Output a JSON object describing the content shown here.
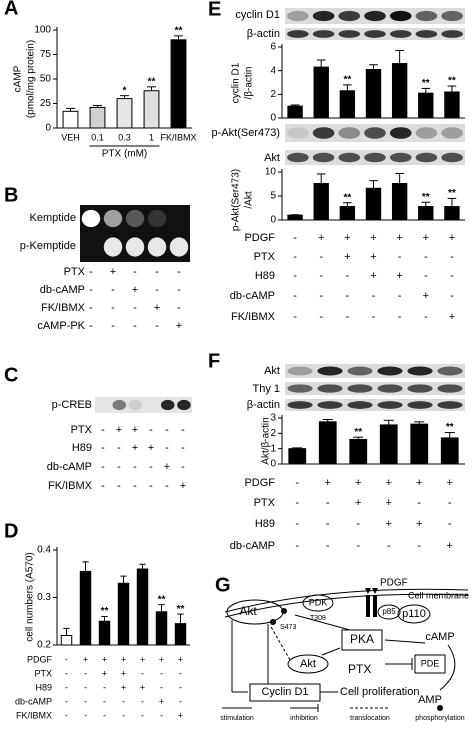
{
  "panel_labels": [
    "A",
    "B",
    "C",
    "D",
    "E",
    "F",
    "G"
  ],
  "chart_data": [
    {
      "type": "bar",
      "ylabel": [
        "cAMP",
        "(pmol/mg protein)"
      ],
      "xlabel": "PTX (mM)",
      "categories": [
        "VEH",
        "0.1",
        "0.3",
        "1",
        "FK/IBMX"
      ],
      "values": [
        17,
        21,
        30,
        38,
        90
      ],
      "errors": [
        3,
        2,
        3,
        4,
        4
      ],
      "significance": [
        null,
        null,
        "*",
        "**",
        "**"
      ],
      "colors": [
        "#ffffff",
        "#d0d0d0",
        "#e6e6e6",
        "#e0e0e0",
        "#000000"
      ],
      "ylim": [
        0,
        100
      ],
      "yticks": [
        0,
        25,
        50,
        75,
        100
      ]
    },
    {
      "type": "bar",
      "ylabel": "cell numbers (A570)",
      "values": [
        0.22,
        0.355,
        0.25,
        0.33,
        0.36,
        0.27,
        0.245
      ],
      "errors": [
        0.015,
        0.02,
        0.01,
        0.015,
        0.01,
        0.015,
        0.02
      ],
      "significance": [
        null,
        null,
        "**",
        null,
        null,
        "**",
        "**"
      ],
      "colors": [
        "#ffffff",
        "#000000",
        "#000000",
        "#000000",
        "#000000",
        "#000000",
        "#000000"
      ],
      "ylim": [
        0.2,
        0.4
      ],
      "yticks": [
        0.2,
        0.3,
        0.4
      ]
    },
    {
      "type": "bar",
      "ylabel": [
        "cyclin D1",
        "/β-actin"
      ],
      "values": [
        1,
        4.3,
        2.3,
        4.1,
        4.6,
        2.1,
        2.2
      ],
      "errors": [
        0.1,
        0.6,
        0.5,
        0.4,
        1.1,
        0.4,
        0.5
      ],
      "significance": [
        null,
        null,
        "**",
        null,
        null,
        "**",
        "**"
      ],
      "colors": [
        "#000000",
        "#000000",
        "#000000",
        "#000000",
        "#000000",
        "#000000",
        "#000000"
      ],
      "ylim": [
        0,
        6
      ],
      "yticks": [
        0,
        2,
        4,
        6
      ]
    },
    {
      "type": "bar",
      "ylabel": [
        "p-Akt(Ser473)",
        "/Akt"
      ],
      "values": [
        1,
        7.6,
        2.8,
        6.6,
        7.6,
        2.8,
        2.8
      ],
      "errors": [
        0.1,
        2,
        0.8,
        1.6,
        2.1,
        0.9,
        1.7
      ],
      "significance": [
        null,
        null,
        "**",
        null,
        null,
        "**",
        "**"
      ],
      "colors": [
        "#000000",
        "#000000",
        "#000000",
        "#000000",
        "#000000",
        "#000000",
        "#000000"
      ],
      "ylim": [
        0,
        10
      ],
      "yticks": [
        0,
        5,
        10
      ]
    },
    {
      "type": "bar",
      "ylabel": "Akt/β-actin",
      "values": [
        1,
        2.75,
        1.6,
        2.55,
        2.6,
        1.7
      ],
      "errors": [
        0.05,
        0.15,
        0.15,
        0.3,
        0.15,
        0.35
      ],
      "significance": [
        null,
        null,
        "**",
        null,
        null,
        "**"
      ],
      "colors": [
        "#000000",
        "#000000",
        "#000000",
        "#000000",
        "#000000",
        "#000000"
      ],
      "ylim": [
        0,
        3
      ],
      "yticks": [
        0,
        1,
        2,
        3
      ]
    }
  ],
  "blots": {
    "B": [
      "Kemptide",
      "p-Kemptide"
    ],
    "C": [
      "p-CREB"
    ],
    "E": [
      "cyclin D1",
      "β-actin",
      "p-Akt(Ser473)",
      "Akt"
    ],
    "F": [
      "Akt",
      "Thy 1",
      "β-actin"
    ]
  },
  "treatments": {
    "B": [
      {
        "label": "PTX",
        "signs": [
          "-",
          "+",
          "-",
          "-",
          "-"
        ]
      },
      {
        "label": "db-cAMP",
        "signs": [
          "-",
          "-",
          "+",
          "-",
          "-"
        ]
      },
      {
        "label": "FK/IBMX",
        "signs": [
          "-",
          "-",
          "-",
          "+",
          "-"
        ]
      },
      {
        "label": "cAMP-PK",
        "signs": [
          "-",
          "-",
          "-",
          "-",
          "+"
        ]
      }
    ],
    "C": [
      {
        "label": "PTX",
        "signs": [
          "-",
          "+",
          "+",
          "-",
          "-",
          "-"
        ]
      },
      {
        "label": "H89",
        "signs": [
          "-",
          "-",
          "+",
          "+",
          "-",
          "-"
        ]
      },
      {
        "label": "db-cAMP",
        "signs": [
          "-",
          "-",
          "-",
          "-",
          "+",
          "-"
        ]
      },
      {
        "label": "FK/IBMX",
        "signs": [
          "-",
          "-",
          "-",
          "-",
          "-",
          "+"
        ]
      }
    ],
    "D": [
      {
        "label": "PDGF",
        "signs": [
          "-",
          "+",
          "+",
          "+",
          "+",
          "+",
          "+"
        ]
      },
      {
        "label": "PTX",
        "signs": [
          "-",
          "-",
          "+",
          "+",
          "-",
          "-",
          "-"
        ]
      },
      {
        "label": "H89",
        "signs": [
          "-",
          "-",
          "-",
          "+",
          "+",
          "-",
          "-"
        ]
      },
      {
        "label": "db-cAMP",
        "signs": [
          "-",
          "-",
          "-",
          "-",
          "-",
          "+",
          "-"
        ]
      },
      {
        "label": "FK/IBMX",
        "signs": [
          "-",
          "-",
          "-",
          "-",
          "-",
          "-",
          "+"
        ]
      }
    ],
    "E": [
      {
        "label": "PDGF",
        "signs": [
          "-",
          "+",
          "+",
          "+",
          "+",
          "+",
          "+"
        ]
      },
      {
        "label": "PTX",
        "signs": [
          "-",
          "-",
          "+",
          "+",
          "-",
          "-",
          "-"
        ]
      },
      {
        "label": "H89",
        "signs": [
          "-",
          "-",
          "-",
          "+",
          "+",
          "-",
          "-"
        ]
      },
      {
        "label": "db-cAMP",
        "signs": [
          "-",
          "-",
          "-",
          "-",
          "-",
          "+",
          "-"
        ]
      },
      {
        "label": "FK/IBMX",
        "signs": [
          "-",
          "-",
          "-",
          "-",
          "-",
          "-",
          "+"
        ]
      }
    ],
    "F": [
      {
        "label": "PDGF",
        "signs": [
          "-",
          "+",
          "+",
          "+",
          "+",
          "+"
        ]
      },
      {
        "label": "PTX",
        "signs": [
          "-",
          "-",
          "+",
          "+",
          "-",
          "-"
        ]
      },
      {
        "label": "H89",
        "signs": [
          "-",
          "-",
          "-",
          "+",
          "+",
          "-"
        ]
      },
      {
        "label": "db-cAMP",
        "signs": [
          "-",
          "-",
          "-",
          "-",
          "-",
          "+"
        ]
      }
    ]
  },
  "diagram": {
    "pdgf": "PDGF",
    "membrane": "Cell membrane",
    "pdk": "PDK",
    "t308": "T308",
    "s473": "S473",
    "akt_top": "Akt",
    "p85": "p85",
    "p110": "p110",
    "pka": "PKA",
    "camp": "cAMP",
    "pde": "PDE",
    "akt_bottom": "Akt",
    "ptx": "PTX",
    "amp": "AMP",
    "cyclin": "Cyclin D1",
    "proliferation": "Cell proliferation",
    "legend": [
      "stimulation",
      "inhibition",
      "translocation",
      "phosphorylation"
    ]
  }
}
